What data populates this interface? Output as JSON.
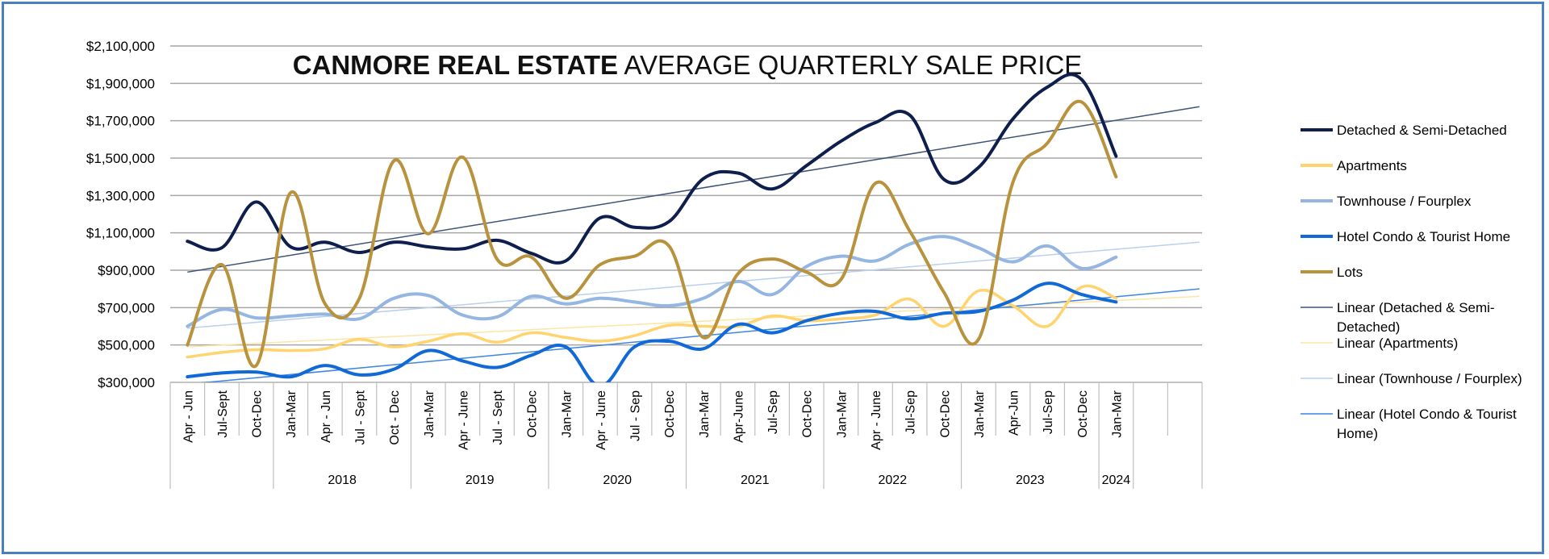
{
  "chart_data": {
    "type": "line",
    "title_bold": "CANMORE REAL ESTATE",
    "title_rest": " AVERAGE QUARTERLY SALE PRICE",
    "ylim": [
      300000,
      2100000
    ],
    "yticks": [
      "$300,000",
      "$500,000",
      "$700,000",
      "$900,000",
      "$1,100,000",
      "$1,300,000",
      "$1,500,000",
      "$1,700,000",
      "$1,900,000",
      "$2,100,000"
    ],
    "ytick_values": [
      300000,
      500000,
      700000,
      900000,
      1100000,
      1300000,
      1500000,
      1700000,
      1900000,
      2100000
    ],
    "categories": [
      "Apr - Jun",
      "Jul-Sept",
      "Oct-Dec",
      "Jan-Mar",
      "Apr - Jun",
      "Jul - Sept",
      "Oct - Dec",
      "Jan-Mar",
      "Apr - June",
      "Jul - Sept",
      "Oct-Dec",
      "Jan-Mar",
      "Apr - June",
      "Jul - Sep",
      "Oct-Dec",
      "Jan-Mar",
      "Apr-June",
      "Jul-Sep",
      "Oct-Dec",
      "Jan-Mar",
      "Apr - June",
      "Jul-Sep",
      "Oct-Dec",
      "Jan-Mar",
      "Apr-Jun",
      "Jul-Sep",
      "Oct-Dec",
      "Jan-Mar"
    ],
    "extra_slots": 2,
    "years": [
      {
        "label": "2018",
        "start": 3,
        "end": 6
      },
      {
        "label": "2019",
        "start": 7,
        "end": 10
      },
      {
        "label": "2020",
        "start": 11,
        "end": 14
      },
      {
        "label": "2021",
        "start": 15,
        "end": 18
      },
      {
        "label": "2022",
        "start": 19,
        "end": 22
      },
      {
        "label": "2023",
        "start": 23,
        "end": 26
      },
      {
        "label": "2024",
        "start": 27,
        "end": 27
      }
    ],
    "series": [
      {
        "name": "Detached & Semi-Detached",
        "color": "#0e1f4d",
        "width": 4,
        "values": [
          1055000,
          1020000,
          1265000,
          1025000,
          1050000,
          995000,
          1050000,
          1025000,
          1015000,
          1060000,
          990000,
          950000,
          1180000,
          1130000,
          1160000,
          1390000,
          1420000,
          1335000,
          1460000,
          1590000,
          1690000,
          1730000,
          1385000,
          1450000,
          1710000,
          1880000,
          1920000,
          1510000
        ]
      },
      {
        "name": "Apartments",
        "color": "#ffd36e",
        "width": 3.5,
        "values": [
          435000,
          460000,
          475000,
          470000,
          480000,
          530000,
          490000,
          520000,
          560000,
          515000,
          565000,
          540000,
          520000,
          550000,
          605000,
          600000,
          600000,
          655000,
          630000,
          640000,
          660000,
          745000,
          600000,
          790000,
          710000,
          600000,
          810000,
          750000
        ]
      },
      {
        "name": "Townhouse / Fourplex",
        "color": "#94b6e0",
        "width": 4,
        "values": [
          600000,
          690000,
          645000,
          655000,
          665000,
          640000,
          750000,
          765000,
          660000,
          650000,
          760000,
          720000,
          750000,
          730000,
          710000,
          750000,
          840000,
          770000,
          920000,
          975000,
          950000,
          1040000,
          1080000,
          1020000,
          945000,
          1030000,
          910000,
          970000
        ]
      },
      {
        "name": "Hotel Condo & Tourist Home",
        "color": "#1169d8",
        "width": 4,
        "values": [
          330000,
          350000,
          355000,
          330000,
          390000,
          340000,
          370000,
          470000,
          415000,
          380000,
          445000,
          490000,
          280000,
          490000,
          520000,
          480000,
          610000,
          565000,
          630000,
          670000,
          680000,
          640000,
          670000,
          680000,
          740000,
          830000,
          770000,
          730000
        ]
      },
      {
        "name": "Lots",
        "color": "#b8923d",
        "width": 4,
        "values": [
          500000,
          930000,
          390000,
          1315000,
          720000,
          750000,
          1485000,
          1095000,
          1505000,
          960000,
          970000,
          750000,
          930000,
          975000,
          1030000,
          540000,
          880000,
          960000,
          890000,
          850000,
          1365000,
          1110000,
          780000,
          530000,
          1370000,
          1580000,
          1800000,
          1400000
        ]
      }
    ],
    "trendlines": [
      {
        "name": "Linear (Detached & Semi-Detached)",
        "color": "#3d5478",
        "start": 890000,
        "end": 1775000
      },
      {
        "name": "Linear (Apartments)",
        "color": "#fce5a6",
        "start": 490000,
        "end": 760000
      },
      {
        "name": "Linear (Townhouse / Fourplex)",
        "color": "#b9d0ef",
        "start": 590000,
        "end": 1050000
      },
      {
        "name": "Linear (Hotel Condo & Tourist Home)",
        "color": "#3d86e2",
        "start": 290000,
        "end": 800000
      }
    ],
    "legend_position": "right",
    "legend": [
      {
        "lines": [
          "Detached & Semi-Detached"
        ],
        "color": "#0e1f4d",
        "width": 4
      },
      {
        "lines": [
          "Apartments"
        ],
        "color": "#ffd36e",
        "width": 4
      },
      {
        "lines": [
          "Townhouse / Fourplex"
        ],
        "color": "#94b6e0",
        "width": 4
      },
      {
        "lines": [
          "Hotel Condo & Tourist Home"
        ],
        "color": "#1169d8",
        "width": 4
      },
      {
        "lines": [
          "Lots"
        ],
        "color": "#b8923d",
        "width": 4
      },
      {
        "lines": [
          "Linear (Detached & Semi-",
          "Detached)"
        ],
        "color": "#3d5478",
        "width": 1.5
      },
      {
        "lines": [
          "Linear (Apartments)"
        ],
        "color": "#fce5a6",
        "width": 1.5
      },
      {
        "lines": [
          "Linear (Townhouse / Fourplex)"
        ],
        "color": "#b9d0ef",
        "width": 1.5
      },
      {
        "lines": [
          "Linear (Hotel Condo & Tourist",
          "Home)"
        ],
        "color": "#3d86e2",
        "width": 1.5
      }
    ]
  }
}
